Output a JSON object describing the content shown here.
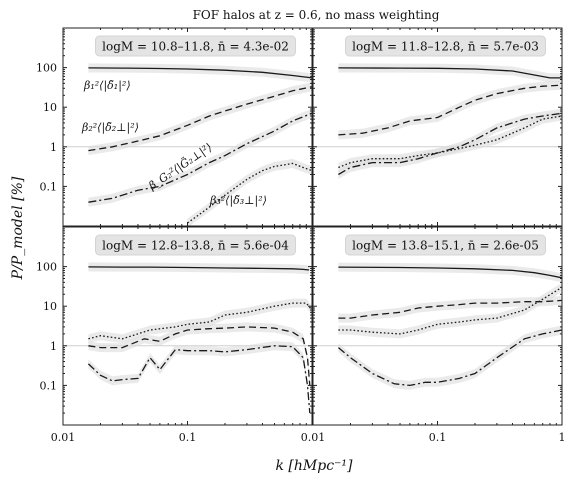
{
  "figure": {
    "title": "FOF halos at z = 0.6, no mass weighting",
    "xlabel": "k [hMpc⁻¹]",
    "ylabel": "P/P_model [%]"
  },
  "chart_data": [
    {
      "type": "line",
      "panel": "top-left",
      "annotation": "logM = 10.8–11.8, n̄ = 4.3e-02",
      "xscale": "log",
      "yscale": "log",
      "xlim": [
        0.01,
        1
      ],
      "ylim": [
        0.01,
        1000
      ],
      "series": [
        {
          "name": "β₁²⟨|δ̃₁|²⟩",
          "style": "solid",
          "x": [
            0.016,
            0.03,
            0.06,
            0.1,
            0.2,
            0.4,
            0.7,
            1.0
          ],
          "y": [
            98,
            97,
            95,
            92,
            86,
            76,
            63,
            55
          ]
        },
        {
          "name": "β₂²⟨|δ̃₂⊥|²⟩",
          "style": "dashed",
          "x": [
            0.016,
            0.025,
            0.04,
            0.06,
            0.1,
            0.15,
            0.2,
            0.3,
            0.5,
            0.7,
            1.0
          ],
          "y": [
            0.8,
            1.0,
            1.4,
            1.9,
            3.5,
            6,
            8,
            12,
            19,
            26,
            33
          ]
        },
        {
          "name": "β_G₂²⟨|G̃₂⊥|²⟩",
          "style": "dashdot",
          "x": [
            0.016,
            0.025,
            0.04,
            0.06,
            0.1,
            0.15,
            0.2,
            0.3,
            0.5,
            0.7,
            1.0
          ],
          "y": [
            0.04,
            0.05,
            0.08,
            0.1,
            0.2,
            0.4,
            0.6,
            1.2,
            2.5,
            4.5,
            7
          ]
        },
        {
          "name": "β₃²⟨|δ̃₃⊥|²⟩",
          "style": "dotted",
          "x": [
            0.1,
            0.12,
            0.15,
            0.2,
            0.25,
            0.3,
            0.4,
            0.5,
            0.6,
            0.7,
            0.85,
            1.0
          ],
          "y": [
            0.012,
            0.018,
            0.03,
            0.06,
            0.1,
            0.15,
            0.25,
            0.32,
            0.35,
            0.38,
            0.3,
            0.25
          ]
        }
      ]
    },
    {
      "type": "line",
      "panel": "top-right",
      "annotation": "logM = 11.8–12.8, n̄ = 5.7e-03",
      "xscale": "log",
      "yscale": "log",
      "xlim": [
        0.01,
        1
      ],
      "ylim": [
        0.01,
        1000
      ],
      "series": [
        {
          "style": "solid",
          "x": [
            0.016,
            0.05,
            0.1,
            0.2,
            0.4,
            0.6,
            0.8,
            1.0
          ],
          "y": [
            98,
            97,
            96,
            92,
            82,
            65,
            55,
            55
          ]
        },
        {
          "style": "dashed",
          "x": [
            0.016,
            0.025,
            0.04,
            0.06,
            0.1,
            0.15,
            0.2,
            0.3,
            0.5,
            0.7,
            1.0
          ],
          "y": [
            2,
            2.2,
            3,
            4.5,
            5.5,
            10,
            15,
            22,
            30,
            34,
            36
          ]
        },
        {
          "style": "dashdot",
          "x": [
            0.016,
            0.02,
            0.03,
            0.05,
            0.07,
            0.1,
            0.15,
            0.2,
            0.3,
            0.5,
            0.7,
            1.0
          ],
          "y": [
            0.2,
            0.3,
            0.4,
            0.4,
            0.5,
            0.7,
            1.0,
            1.5,
            3,
            5,
            6,
            7
          ]
        },
        {
          "style": "dotted",
          "x": [
            0.016,
            0.02,
            0.03,
            0.05,
            0.07,
            0.1,
            0.15,
            0.2,
            0.3,
            0.5,
            0.7,
            1.0
          ],
          "y": [
            0.3,
            0.4,
            0.5,
            0.5,
            0.6,
            0.7,
            0.9,
            1.1,
            1.5,
            3,
            5,
            6
          ]
        }
      ]
    },
    {
      "type": "line",
      "panel": "bottom-left",
      "annotation": "logM = 12.8–13.8, n̄ = 5.6e-04",
      "xscale": "log",
      "yscale": "log",
      "xlim": [
        0.01,
        1
      ],
      "ylim": [
        0.01,
        1000
      ],
      "series": [
        {
          "style": "solid",
          "x": [
            0.016,
            0.03,
            0.05,
            0.1,
            0.2,
            0.4,
            0.7,
            0.85,
            0.95
          ],
          "y": [
            98,
            97,
            97,
            95,
            92,
            90,
            88,
            85,
            82
          ]
        },
        {
          "style": "dashed",
          "x": [
            0.016,
            0.02,
            0.03,
            0.045,
            0.06,
            0.08,
            0.1,
            0.15,
            0.2,
            0.3,
            0.5,
            0.7,
            0.85,
            0.92,
            0.96
          ],
          "y": [
            1.0,
            0.9,
            0.9,
            1.5,
            1.3,
            2.0,
            2.5,
            2.7,
            2.8,
            3.0,
            2.8,
            2.2,
            1.5,
            0.5,
            0.1
          ]
        },
        {
          "style": "dashdot",
          "x": [
            0.016,
            0.02,
            0.025,
            0.03,
            0.04,
            0.05,
            0.06,
            0.08,
            0.1,
            0.15,
            0.2,
            0.3,
            0.5,
            0.7,
            0.85,
            0.92,
            0.96
          ],
          "y": [
            0.35,
            0.18,
            0.13,
            0.14,
            0.15,
            0.5,
            0.25,
            0.8,
            0.75,
            0.75,
            0.7,
            0.8,
            1.0,
            0.95,
            0.5,
            0.1,
            0.02
          ]
        },
        {
          "style": "dotted",
          "x": [
            0.016,
            0.02,
            0.03,
            0.05,
            0.08,
            0.1,
            0.15,
            0.2,
            0.3,
            0.5,
            0.7,
            0.9,
            1.0
          ],
          "y": [
            1.5,
            1.8,
            1.5,
            2.5,
            3,
            3.5,
            4,
            6,
            7,
            10,
            12,
            12,
            8
          ]
        }
      ]
    },
    {
      "type": "line",
      "panel": "bottom-right",
      "annotation": "logM = 13.8–15.1, n̄ = 2.6e-05",
      "xscale": "log",
      "yscale": "log",
      "xlim": [
        0.01,
        1
      ],
      "ylim": [
        0.01,
        1000
      ],
      "series": [
        {
          "style": "solid",
          "x": [
            0.016,
            0.05,
            0.1,
            0.2,
            0.4,
            0.6,
            0.8,
            1.0
          ],
          "y": [
            97,
            95,
            92,
            88,
            80,
            70,
            60,
            52
          ]
        },
        {
          "style": "dashed",
          "x": [
            0.016,
            0.02,
            0.03,
            0.05,
            0.07,
            0.1,
            0.15,
            0.2,
            0.3,
            0.5,
            0.7,
            1.0
          ],
          "y": [
            5,
            5,
            6,
            7,
            9,
            10,
            11,
            12,
            12,
            13,
            13,
            14
          ]
        },
        {
          "style": "dotted",
          "x": [
            0.016,
            0.02,
            0.03,
            0.05,
            0.07,
            0.1,
            0.15,
            0.2,
            0.3,
            0.5,
            0.7,
            1.0
          ],
          "y": [
            2.5,
            2.5,
            2.2,
            2.0,
            2.5,
            3.5,
            4,
            4.5,
            5,
            8,
            15,
            30
          ]
        },
        {
          "style": "dashdot",
          "x": [
            0.016,
            0.02,
            0.03,
            0.045,
            0.06,
            0.08,
            0.1,
            0.15,
            0.2,
            0.3,
            0.5,
            0.7,
            1.0
          ],
          "y": [
            0.9,
            0.5,
            0.2,
            0.11,
            0.1,
            0.12,
            0.12,
            0.15,
            0.2,
            0.5,
            1.5,
            2,
            2.5
          ]
        }
      ]
    }
  ]
}
